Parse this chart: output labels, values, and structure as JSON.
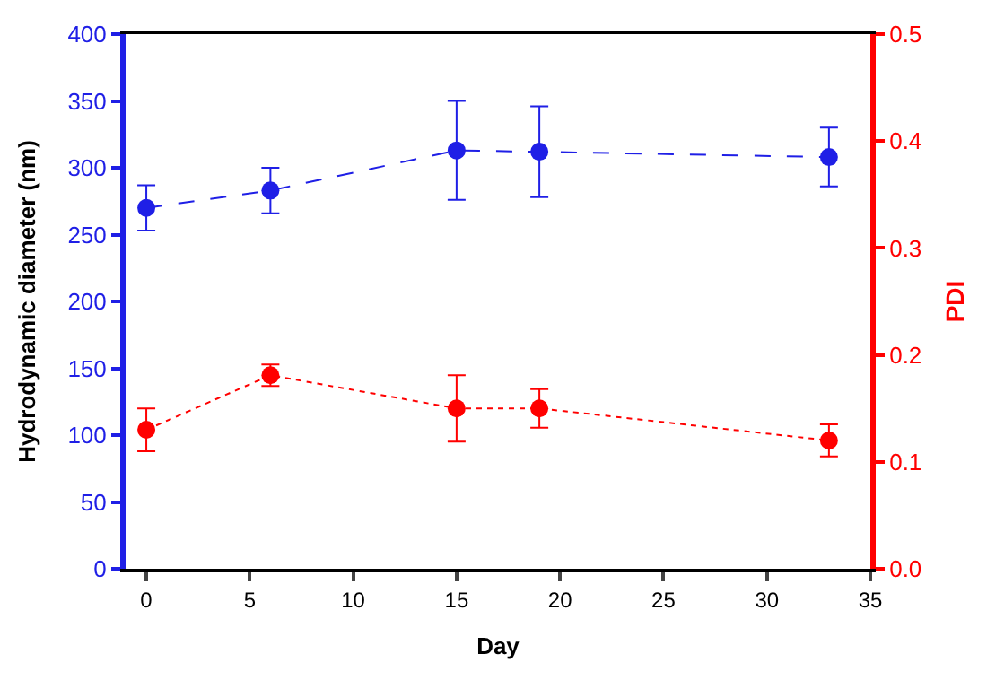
{
  "chart_data": {
    "type": "line",
    "xlabel": "Day",
    "ylabel": "Hydrodynamic diameter (nm)",
    "y2label": "PDI",
    "x": [
      0,
      6,
      15,
      19,
      33
    ],
    "series": [
      {
        "color": "#1f1fe6",
        "values": [
          270,
          283,
          313,
          312,
          308
        ],
        "errors": [
          17,
          17,
          37,
          34,
          22
        ],
        "line_style": "dashed"
      },
      {
        "color": "#ff0000",
        "axis": "y2",
        "values": [
          0.13,
          0.181,
          0.15,
          0.15,
          0.12
        ],
        "errors": [
          0.02,
          0.01,
          0.031,
          0.018,
          0.015
        ],
        "line_style": "dotted"
      }
    ],
    "xlim": [
      -1,
      35
    ],
    "xticks": [
      0,
      5,
      10,
      15,
      20,
      25,
      30,
      35
    ],
    "ylim": [
      0,
      400
    ],
    "yticks": [
      0,
      50,
      100,
      150,
      200,
      250,
      300,
      350,
      400
    ],
    "y2lim": [
      0,
      0.5
    ],
    "y2ticks": [
      {
        "value": 0,
        "label": "0.0"
      },
      0.1,
      0.2,
      0.3,
      0.4,
      0.5
    ],
    "marker": "circle"
  }
}
